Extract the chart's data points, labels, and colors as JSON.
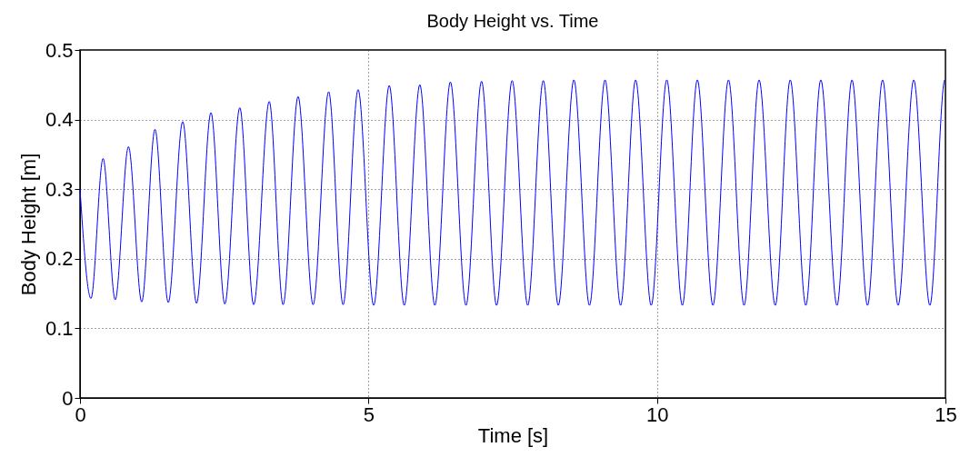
{
  "chart_data": {
    "type": "line",
    "title": "Body Height vs. Time",
    "xlabel": "Time [s]",
    "ylabel": "Body Height [m]",
    "x": [
      0,
      0.19,
      0.4,
      0.61,
      0.84,
      1.07,
      1.3,
      1.53,
      1.78,
      2.02,
      2.27,
      2.51,
      2.77,
      3.01,
      3.28,
      3.52,
      3.78,
      4.04,
      4.31,
      4.56,
      4.82,
      5.09,
      5.36,
      5.62,
      5.89,
      6.15,
      6.42,
      6.69,
      6.96,
      7.22,
      7.49,
      7.76,
      8.03,
      8.29,
      8.56,
      8.83,
      9.1,
      9.37,
      9.63,
      9.9,
      10.17,
      10.44,
      10.7,
      10.97,
      11.24,
      11.51,
      11.77,
      12.05,
      12.31,
      12.58,
      12.84,
      13.12,
      13.38,
      13.65,
      13.91,
      14.18,
      14.45,
      14.73,
      14.99,
      15
    ],
    "series": [
      {
        "color": "#0000ff",
        "values": [
          0.3,
          0.143,
          0.344,
          0.141,
          0.361,
          0.138,
          0.386,
          0.137,
          0.397,
          0.136,
          0.41,
          0.135,
          0.417,
          0.134,
          0.426,
          0.134,
          0.433,
          0.134,
          0.44,
          0.134,
          0.443,
          0.133,
          0.449,
          0.133,
          0.45,
          0.133,
          0.454,
          0.133,
          0.455,
          0.133,
          0.456,
          0.133,
          0.456,
          0.133,
          0.457,
          0.133,
          0.457,
          0.133,
          0.457,
          0.133,
          0.457,
          0.133,
          0.457,
          0.133,
          0.457,
          0.133,
          0.457,
          0.133,
          0.457,
          0.133,
          0.457,
          0.133,
          0.457,
          0.133,
          0.457,
          0.133,
          0.457,
          0.133,
          0.457,
          0.456
        ]
      }
    ],
    "xlim": [
      0,
      15
    ],
    "xticks": [
      0,
      5,
      10,
      15
    ],
    "ylim": [
      0,
      0.5
    ],
    "yticks": [
      0,
      0.1,
      0.2,
      0.3,
      0.4,
      0.5
    ],
    "grid": true,
    "marker": "none",
    "line_style": "solid"
  }
}
